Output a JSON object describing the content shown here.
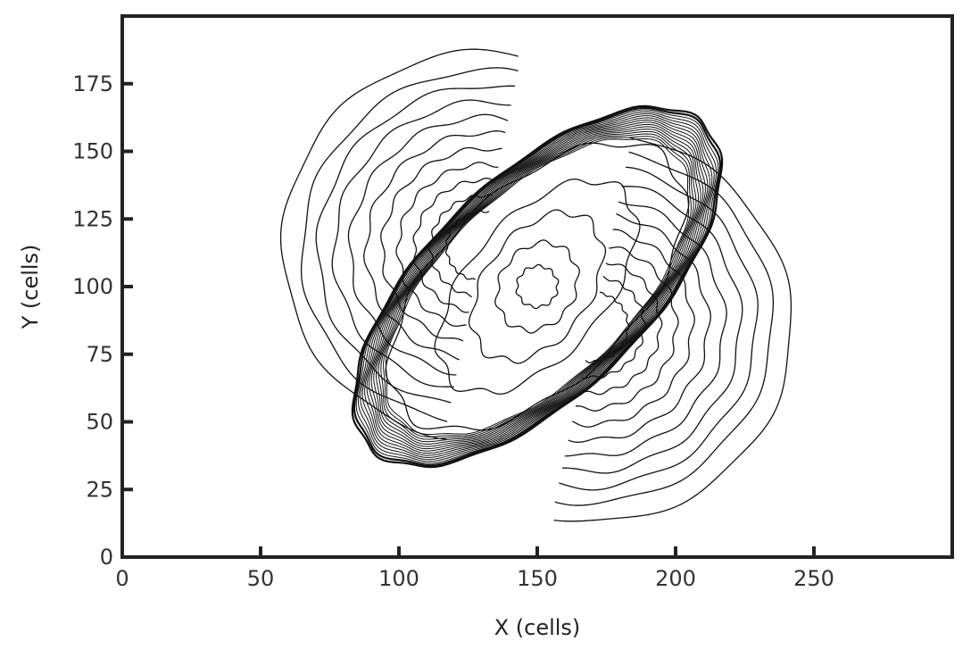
{
  "chart_data": {
    "type": "contour",
    "xlabel": "X (cells)",
    "ylabel": "Y (cells)",
    "xlim": [
      0,
      300
    ],
    "ylim": [
      0,
      200
    ],
    "xticks": [
      0,
      50,
      100,
      150,
      200,
      250
    ],
    "yticks": [
      0,
      25,
      50,
      75,
      100,
      125,
      150,
      175
    ],
    "grid": false,
    "line_color": "#111111",
    "center": [
      150,
      100
    ],
    "rotation_deg": 45,
    "outer_lobes": [
      {
        "center": [
          130,
          115
        ],
        "radius": 72
      },
      {
        "center": [
          170,
          85
        ],
        "radius": 72
      }
    ],
    "inner_core": {
      "semi_major": 85,
      "semi_minor": 38
    },
    "contour_levels": {
      "outer_rings": 11,
      "shock_band": 16,
      "inner_core": 5
    }
  },
  "colors": {
    "frame": "#222222",
    "background": "#ffffff"
  }
}
